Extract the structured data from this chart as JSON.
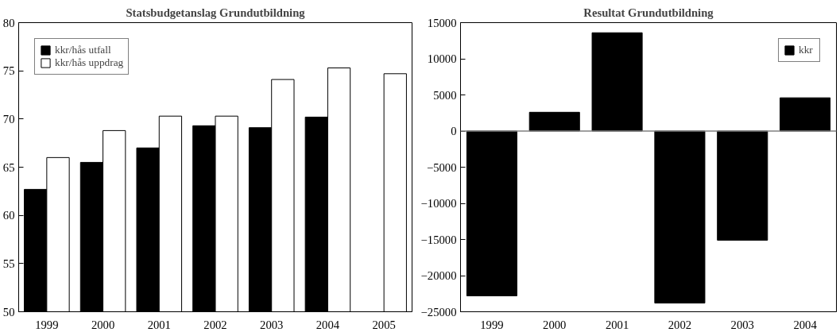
{
  "chart_data": [
    {
      "type": "bar",
      "title": "Statsbudgetanslag Grundutbildning",
      "categories": [
        "1999",
        "2000",
        "2001",
        "2002",
        "2003",
        "2004",
        "2005"
      ],
      "series": [
        {
          "name": "kkr/hås utfall",
          "color": "#000000",
          "values": [
            62.7,
            65.5,
            67.0,
            69.3,
            69.1,
            70.2,
            null
          ]
        },
        {
          "name": "kkr/hås uppdrag",
          "color": "#ffffff",
          "values": [
            66.0,
            68.8,
            70.3,
            70.3,
            74.1,
            75.3,
            74.7
          ]
        }
      ],
      "ylim": [
        50,
        80
      ],
      "yticks": [
        50,
        55,
        60,
        65,
        70,
        75,
        80
      ],
      "grid": false,
      "legend": "top left"
    },
    {
      "type": "bar",
      "title": "Resultat Grundutbildning",
      "categories": [
        "1999",
        "2000",
        "2001",
        "2002",
        "2003",
        "2004"
      ],
      "series": [
        {
          "name": "kkr",
          "color": "#000000",
          "values": [
            -22800,
            2600,
            13600,
            -23800,
            -15100,
            4600
          ]
        }
      ],
      "ylim": [
        -25000,
        15000
      ],
      "yticks": [
        -25000,
        -20000,
        -15000,
        -10000,
        -5000,
        0,
        5000,
        10000,
        15000
      ],
      "grid": false,
      "legend": "top right",
      "ref_lines": [
        {
          "axis": "y",
          "value": 0,
          "color": "#808080"
        }
      ]
    }
  ]
}
